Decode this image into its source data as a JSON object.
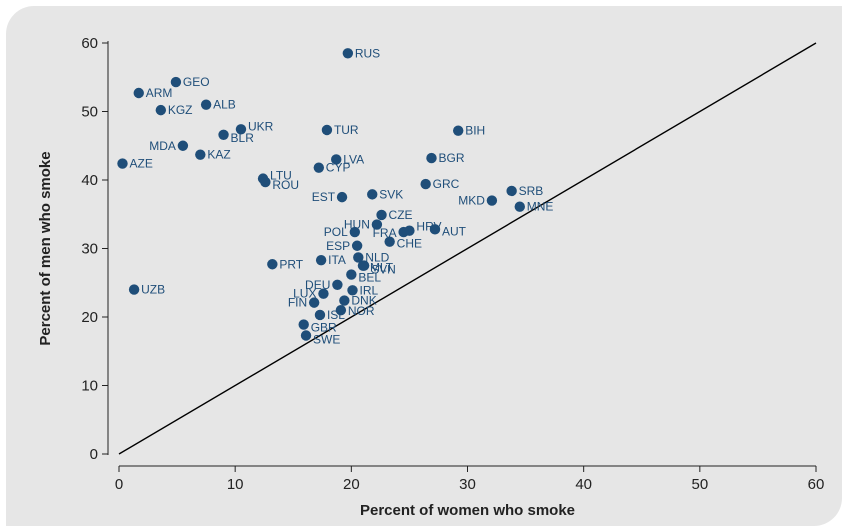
{
  "chart_data": {
    "type": "scatter",
    "title": "",
    "xlabel": "Percent of women who smoke",
    "ylabel": "Percent of men who smoke",
    "xlim": [
      0,
      60
    ],
    "ylim": [
      0,
      60
    ],
    "xticks": [
      0,
      10,
      20,
      30,
      40,
      50,
      60
    ],
    "yticks": [
      0,
      10,
      20,
      30,
      40,
      50,
      60
    ],
    "grid": false,
    "reference_line": {
      "from": [
        0,
        0
      ],
      "to": [
        60,
        60
      ]
    },
    "point_color": "#1f4e79",
    "line_color": "#000000",
    "points": [
      {
        "label": "RUS",
        "x": 19.7,
        "y": 58.5
      },
      {
        "label": "GEO",
        "x": 4.9,
        "y": 54.3
      },
      {
        "label": "ARM",
        "x": 1.7,
        "y": 52.7
      },
      {
        "label": "ALB",
        "x": 7.5,
        "y": 51.0
      },
      {
        "label": "KGZ",
        "x": 3.6,
        "y": 50.2
      },
      {
        "label": "UKR",
        "x": 10.5,
        "y": 47.4
      },
      {
        "label": "TUR",
        "x": 17.9,
        "y": 47.3
      },
      {
        "label": "BIH",
        "x": 29.2,
        "y": 47.2
      },
      {
        "label": "BLR",
        "x": 9.0,
        "y": 46.6
      },
      {
        "label": "MDA",
        "x": 5.5,
        "y": 45.0
      },
      {
        "label": "KAZ",
        "x": 7.0,
        "y": 43.7
      },
      {
        "label": "LVA",
        "x": 18.7,
        "y": 43.0
      },
      {
        "label": "BGR",
        "x": 26.9,
        "y": 43.2
      },
      {
        "label": "AZE",
        "x": 0.3,
        "y": 42.4
      },
      {
        "label": "CYP",
        "x": 17.2,
        "y": 41.8
      },
      {
        "label": "LTU",
        "x": 12.4,
        "y": 40.2
      },
      {
        "label": "ROU",
        "x": 12.6,
        "y": 39.7
      },
      {
        "label": "GRC",
        "x": 26.4,
        "y": 39.4
      },
      {
        "label": "SRB",
        "x": 33.8,
        "y": 38.4
      },
      {
        "label": "SVK",
        "x": 21.8,
        "y": 37.9
      },
      {
        "label": "EST",
        "x": 19.2,
        "y": 37.5
      },
      {
        "label": "MKD",
        "x": 32.1,
        "y": 37.0
      },
      {
        "label": "MNE",
        "x": 34.5,
        "y": 36.1
      },
      {
        "label": "CZE",
        "x": 22.6,
        "y": 34.9
      },
      {
        "label": "HUN",
        "x": 22.2,
        "y": 33.5
      },
      {
        "label": "AUT",
        "x": 27.2,
        "y": 32.8
      },
      {
        "label": "HRV",
        "x": 25.0,
        "y": 32.6
      },
      {
        "label": "FRA",
        "x": 24.5,
        "y": 32.4
      },
      {
        "label": "POL",
        "x": 20.3,
        "y": 32.4
      },
      {
        "label": "CHE",
        "x": 23.3,
        "y": 31.0
      },
      {
        "label": "ESP",
        "x": 20.5,
        "y": 30.4
      },
      {
        "label": "NLD",
        "x": 20.6,
        "y": 28.7
      },
      {
        "label": "ITA",
        "x": 17.4,
        "y": 28.3
      },
      {
        "label": "PRT",
        "x": 13.2,
        "y": 27.7
      },
      {
        "label": "MLT",
        "x": 21.0,
        "y": 27.5
      },
      {
        "label": "BEL",
        "x": 20.0,
        "y": 26.2
      },
      {
        "label": "SVN",
        "x": 21.1,
        "y": 27.5
      },
      {
        "label": "DEU",
        "x": 18.8,
        "y": 24.7
      },
      {
        "label": "UZB",
        "x": 1.3,
        "y": 24.0
      },
      {
        "label": "IRL",
        "x": 20.1,
        "y": 23.9
      },
      {
        "label": "LUX",
        "x": 17.6,
        "y": 23.4
      },
      {
        "label": "DNK",
        "x": 19.4,
        "y": 22.4
      },
      {
        "label": "FIN",
        "x": 16.8,
        "y": 22.1
      },
      {
        "label": "NOR",
        "x": 19.1,
        "y": 21.0
      },
      {
        "label": "ISL",
        "x": 17.3,
        "y": 20.3
      },
      {
        "label": "GBR",
        "x": 15.9,
        "y": 18.9
      },
      {
        "label": "SWE",
        "x": 16.1,
        "y": 17.3
      }
    ]
  }
}
